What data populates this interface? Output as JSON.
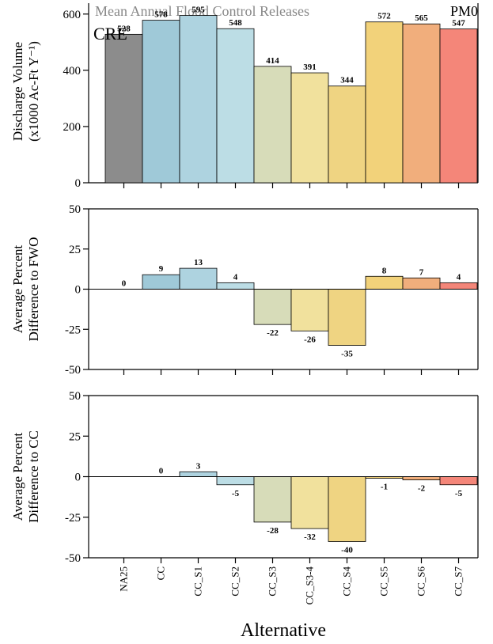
{
  "header": {
    "title": "Mean Annual Flood Control Releases",
    "code": "PM0"
  },
  "chart_data": [
    {
      "type": "bar",
      "panel_tag": "CRE",
      "ylabel_lines": [
        "Discharge Volume",
        "(x1000 Ac-Ft Y⁻¹)"
      ],
      "categories": [
        "NA25",
        "CC",
        "CC_S1",
        "CC_S2",
        "CC_S3",
        "CC_S3-4",
        "CC_S4",
        "CC_S5",
        "CC_S6",
        "CC_S7"
      ],
      "values": [
        528,
        578,
        595,
        548,
        414,
        391,
        344,
        572,
        565,
        547
      ],
      "labels": [
        "528",
        "578",
        "595",
        "548",
        "414",
        "391",
        "344",
        "572",
        "565",
        "547"
      ],
      "ylim": [
        0,
        650
      ],
      "yticks": [
        0,
        200,
        400,
        600
      ],
      "ytick_labels": [
        "0",
        "200",
        "400",
        "600"
      ]
    },
    {
      "type": "bar",
      "ylabel_lines": [
        "Average Percent",
        "Difference to FWO"
      ],
      "categories": [
        "NA25",
        "CC",
        "CC_S1",
        "CC_S2",
        "CC_S3",
        "CC_S3-4",
        "CC_S4",
        "CC_S5",
        "CC_S6",
        "CC_S7"
      ],
      "values": [
        0,
        9,
        13,
        4,
        -22,
        -26,
        -35,
        8,
        7,
        4
      ],
      "labels": [
        "0",
        "9",
        "13",
        "4",
        "-22",
        "-26",
        "-35",
        "8",
        "7",
        "4"
      ],
      "ylim": [
        -50,
        50
      ],
      "yticks": [
        -50,
        -25,
        0,
        25,
        50
      ],
      "ytick_labels": [
        "-50",
        "-25",
        "0",
        "25",
        "50"
      ]
    },
    {
      "type": "bar",
      "ylabel_lines": [
        "Average Percent",
        "Difference to CC"
      ],
      "categories": [
        "NA25",
        "CC",
        "CC_S1",
        "CC_S2",
        "CC_S3",
        "CC_S3-4",
        "CC_S4",
        "CC_S5",
        "CC_S6",
        "CC_S7"
      ],
      "values": [
        null,
        0,
        3,
        -5,
        -28,
        -32,
        -40,
        -1,
        -2,
        -5
      ],
      "labels": [
        "",
        "0",
        "3",
        "-5",
        "-28",
        "-32",
        "-40",
        "-1",
        "-2",
        "-5"
      ],
      "ylim": [
        -50,
        50
      ],
      "yticks": [
        -50,
        -25,
        0,
        25,
        50
      ],
      "ytick_labels": [
        "-50",
        "-25",
        "0",
        "25",
        "50"
      ]
    }
  ],
  "xlabel": "Alternative",
  "colors": [
    "#8c8c8c",
    "#9fc9d8",
    "#aed3e0",
    "#bcdde5",
    "#d7dcb9",
    "#f1e19d",
    "#efd482",
    "#f2d27a",
    "#f1ae7c",
    "#f48679"
  ]
}
